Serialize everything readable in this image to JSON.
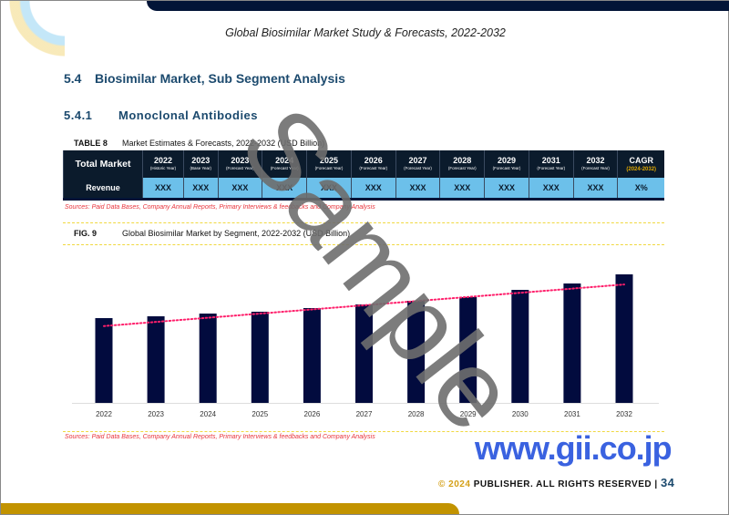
{
  "header": {
    "title": "Global Biosimilar Market Study & Forecasts, 2022-2032"
  },
  "section": {
    "number": "5.4",
    "title": "Biosimilar Market, Sub Segment Analysis"
  },
  "subsection": {
    "number": "5.4.1",
    "title": "Monoclonal Antibodies"
  },
  "table": {
    "label": "TABLE 8",
    "caption": "Market Estimates & Forecasts, 2022-2032 (USD Billion)",
    "row_header": "Total Market",
    "row_label": "Revenue",
    "columns": [
      {
        "year": "2022",
        "sub": "(Historic Year)"
      },
      {
        "year": "2023",
        "sub": "(Base Year)"
      },
      {
        "year": "2023",
        "sub": "(Forecast Year)"
      },
      {
        "year": "2024",
        "sub": "(Forecast Year)"
      },
      {
        "year": "2025",
        "sub": "(Forecast Year)"
      },
      {
        "year": "2026",
        "sub": "(Forecast Year)"
      },
      {
        "year": "2027",
        "sub": "(Forecast Year)"
      },
      {
        "year": "2028",
        "sub": "(Forecast Year)"
      },
      {
        "year": "2029",
        "sub": "(Forecast Year)"
      },
      {
        "year": "2031",
        "sub": "(Forecast Year)"
      },
      {
        "year": "2032",
        "sub": "(Forecast Year)"
      }
    ],
    "cagr_label": "CAGR",
    "cagr_sub": "(2024-2032)",
    "values": [
      "XXX",
      "XXX",
      "XXX",
      "XXX",
      "XXX",
      "XXX",
      "XXX",
      "XXX",
      "XXX",
      "XXX",
      "XXX"
    ],
    "cagr_value": "X%",
    "source": "Sources: Paid Data Bases, Company Annual Reports, Primary Interviews & feedbacks and Company Analysis"
  },
  "figure": {
    "label": "FIG. 9",
    "caption": "Global Biosimilar Market by Segment, 2022-2032 (USD Billion)",
    "source": "Sources: Paid Data Bases, Company Annual Reports, Primary Interviews & feedbacks and Company Analysis"
  },
  "chart_data": {
    "type": "bar",
    "categories": [
      "2022",
      "2023",
      "2024",
      "2025",
      "2026",
      "2027",
      "2028",
      "2029",
      "2030",
      "2031",
      "2032"
    ],
    "values": [
      93,
      95,
      98,
      100,
      104,
      108,
      112,
      116,
      124,
      131,
      141
    ],
    "trendline": "linear dotted",
    "colors": {
      "bar": "#020b3e",
      "trend": "#ff1f6b"
    },
    "grid": false,
    "y_axis_labels": false
  },
  "watermark": "Sample",
  "site": "www.gii.co.jp",
  "footer": {
    "copyright": "© 2024",
    "rights": "PUBLISHER. ALL RIGHTS RESERVED |",
    "page": "34"
  }
}
